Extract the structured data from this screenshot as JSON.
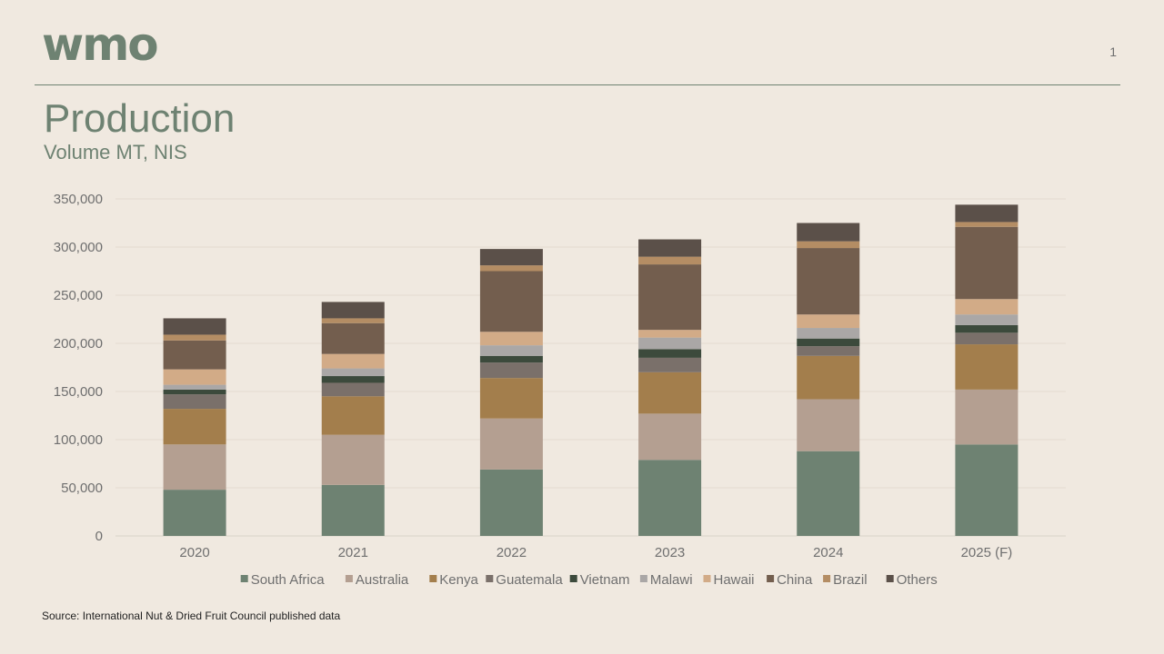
{
  "header": {
    "logo": "wmo",
    "page_number": "1",
    "title": "Production",
    "subtitle": "Volume MT, NIS"
  },
  "footer": {
    "source": "Source: International Nut & Dried Fruit Council published data"
  },
  "chart_data": {
    "type": "bar",
    "stacked": true,
    "categories": [
      "2020",
      "2021",
      "2022",
      "2023",
      "2024",
      "2025 (F)"
    ],
    "ylim": [
      0,
      350000
    ],
    "yticks": [
      0,
      50000,
      100000,
      150000,
      200000,
      250000,
      300000,
      350000
    ],
    "ytick_labels": [
      "0",
      "50,000",
      "100,000",
      "150,000",
      "200,000",
      "250,000",
      "300,000",
      "350,000"
    ],
    "grid": true,
    "legend_position": "bottom",
    "series": [
      {
        "name": "South Africa",
        "color": "#6e8272",
        "values": [
          48000,
          53000,
          69000,
          79000,
          88000,
          95000
        ]
      },
      {
        "name": "Australia",
        "color": "#b49f91",
        "values": [
          47000,
          52000,
          53000,
          48000,
          54000,
          57000
        ]
      },
      {
        "name": "Kenya",
        "color": "#a37e4c",
        "values": [
          37000,
          40000,
          42000,
          43000,
          45000,
          47000
        ]
      },
      {
        "name": "Guatemala",
        "color": "#7a706a",
        "values": [
          15000,
          14000,
          16000,
          15000,
          10000,
          12000
        ]
      },
      {
        "name": "Vietnam",
        "color": "#3c4a3c",
        "values": [
          5000,
          7000,
          7000,
          9000,
          8000,
          8000
        ]
      },
      {
        "name": "Malawi",
        "color": "#aaa7a6",
        "values": [
          5000,
          8000,
          11000,
          12000,
          11000,
          11000
        ]
      },
      {
        "name": "Hawaii",
        "color": "#d2ab87",
        "values": [
          16000,
          15000,
          14000,
          8000,
          14000,
          16000
        ]
      },
      {
        "name": "China",
        "color": "#735e4e",
        "values": [
          30000,
          32000,
          63000,
          68000,
          69000,
          75000
        ]
      },
      {
        "name": "Brazil",
        "color": "#b48d64",
        "values": [
          6000,
          5000,
          6000,
          8000,
          7000,
          5000
        ]
      },
      {
        "name": "Others",
        "color": "#5b5049",
        "values": [
          17000,
          17000,
          17000,
          18000,
          19000,
          18000
        ]
      }
    ]
  }
}
